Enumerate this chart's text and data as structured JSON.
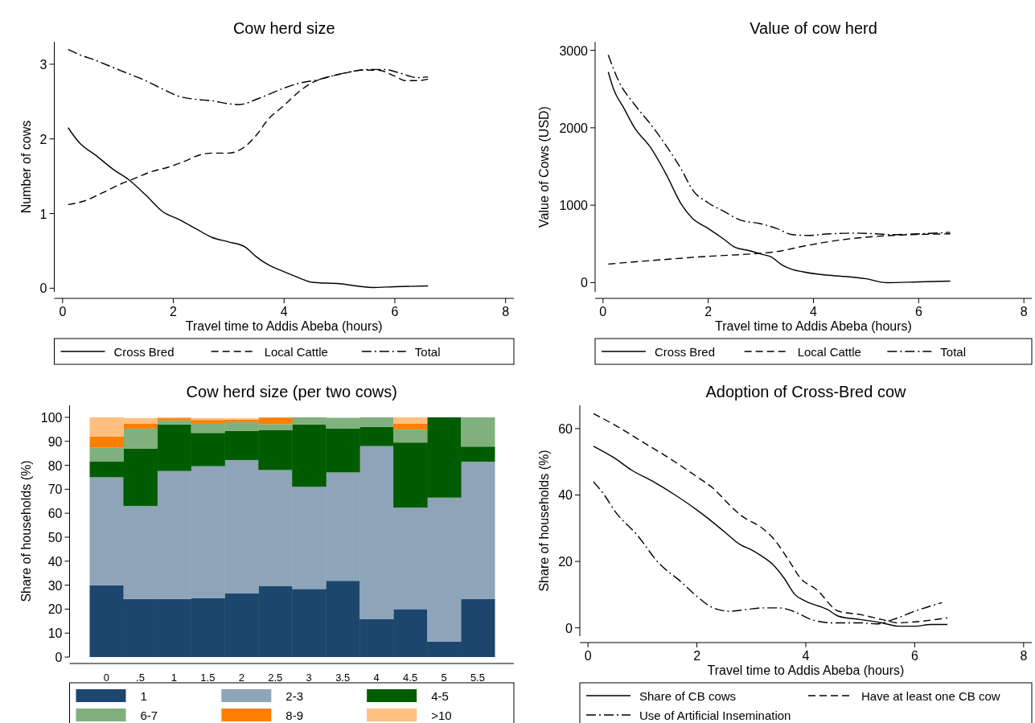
{
  "chart_data": [
    {
      "type": "line",
      "title": "Cow herd size",
      "xlabel": "Travel time to Addis Abeba (hours)",
      "ylabel": "Number of cows",
      "xlim": [
        -0.15,
        8.15
      ],
      "xticks": [
        0,
        2,
        4,
        6,
        8
      ],
      "ylim": [
        -0.05,
        3.3
      ],
      "yticks": [
        0,
        1,
        2,
        3
      ],
      "legend": "bottom",
      "grid": false,
      "series": [
        {
          "name": "Cross Bred",
          "color": "#000000",
          "line_style": "solid",
          "x": [
            0.1,
            0.3,
            0.6,
            0.9,
            1.2,
            1.5,
            1.8,
            2.1,
            2.4,
            2.7,
            3.0,
            3.3,
            3.5,
            3.7,
            4.0,
            4.3,
            4.5,
            5.0,
            5.6,
            6.0,
            6.6
          ],
          "values": [
            2.15,
            1.95,
            1.78,
            1.6,
            1.45,
            1.25,
            1.03,
            0.92,
            0.8,
            0.68,
            0.62,
            0.55,
            0.42,
            0.32,
            0.22,
            0.13,
            0.08,
            0.06,
            0.01,
            0.02,
            0.03
          ]
        },
        {
          "name": "Local Cattle",
          "color": "#000000",
          "line_style": "dashed",
          "x": [
            0.1,
            0.4,
            0.7,
            1.0,
            1.3,
            1.6,
            1.9,
            2.2,
            2.5,
            2.7,
            3.0,
            3.3,
            3.5,
            3.7,
            4.0,
            4.3,
            4.5,
            4.8,
            5.1,
            5.4,
            5.7,
            6.0,
            6.2,
            6.4,
            6.6
          ],
          "values": [
            1.12,
            1.17,
            1.27,
            1.38,
            1.47,
            1.56,
            1.62,
            1.7,
            1.79,
            1.81,
            1.81,
            1.9,
            2.05,
            2.25,
            2.45,
            2.65,
            2.75,
            2.83,
            2.88,
            2.92,
            2.92,
            2.84,
            2.78,
            2.78,
            2.8
          ]
        },
        {
          "name": "Total",
          "color": "#000000",
          "line_style": "dashdot",
          "x": [
            0.1,
            0.3,
            0.6,
            0.9,
            1.2,
            1.5,
            1.8,
            2.1,
            2.4,
            2.7,
            3.0,
            3.2,
            3.5,
            3.8,
            4.0,
            4.3,
            4.6,
            4.9,
            5.2,
            5.5,
            5.8,
            6.1,
            6.4,
            6.6
          ],
          "values": [
            3.2,
            3.13,
            3.05,
            2.96,
            2.87,
            2.78,
            2.67,
            2.57,
            2.53,
            2.51,
            2.47,
            2.46,
            2.53,
            2.62,
            2.68,
            2.75,
            2.79,
            2.85,
            2.9,
            2.93,
            2.93,
            2.88,
            2.82,
            2.83
          ]
        }
      ]
    },
    {
      "type": "line",
      "title": "Value of cow herd",
      "xlabel": "Travel time to Addis Abeba (hours)",
      "ylabel": "Value of Cows (USD)",
      "xlim": [
        -0.15,
        8.15
      ],
      "xticks": [
        0,
        2,
        4,
        6,
        8
      ],
      "ylim": [
        -120,
        3110
      ],
      "yticks": [
        0,
        1000,
        2000,
        3000
      ],
      "legend": "bottom",
      "grid": false,
      "series": [
        {
          "name": "Cross Bred",
          "color": "#000000",
          "line_style": "solid",
          "x": [
            0.1,
            0.2,
            0.4,
            0.6,
            0.9,
            1.2,
            1.5,
            1.7,
            2.0,
            2.3,
            2.5,
            2.8,
            3.0,
            3.2,
            3.4,
            3.6,
            3.8,
            4.2,
            4.6,
            5.0,
            5.4,
            6.0,
            6.6
          ],
          "values": [
            2720,
            2500,
            2250,
            2000,
            1750,
            1400,
            1000,
            830,
            700,
            560,
            460,
            410,
            370,
            330,
            230,
            170,
            140,
            100,
            80,
            50,
            0,
            10,
            20
          ]
        },
        {
          "name": "Local Cattle",
          "color": "#000000",
          "line_style": "dashed",
          "x": [
            0.1,
            1.0,
            2.0,
            3.0,
            3.3,
            3.8,
            4.5,
            5.5,
            6.6
          ],
          "values": [
            240,
            290,
            340,
            380,
            400,
            470,
            550,
            610,
            630
          ]
        },
        {
          "name": "Total",
          "color": "#000000",
          "line_style": "dashdot",
          "x": [
            0.1,
            0.3,
            0.6,
            0.9,
            1.2,
            1.5,
            1.7,
            2.0,
            2.3,
            2.6,
            3.0,
            3.3,
            3.6,
            3.9,
            4.3,
            4.8,
            5.2,
            5.5,
            6.0,
            6.6
          ],
          "values": [
            2940,
            2600,
            2300,
            2050,
            1770,
            1450,
            1200,
            1030,
            920,
            810,
            760,
            700,
            620,
            610,
            630,
            640,
            630,
            620,
            630,
            650
          ]
        }
      ]
    },
    {
      "type": "bar",
      "stacked": true,
      "title": "Cow herd size (per two cows)",
      "ylabel": "Share of households (%)",
      "categories": [
        "0",
        ".5",
        "1",
        "1.5",
        "2",
        "2.5",
        "3",
        "3.5",
        "4",
        "4.5",
        "5",
        "5.5"
      ],
      "ylim": [
        0,
        105
      ],
      "yticks": [
        0,
        10,
        20,
        30,
        40,
        50,
        60,
        70,
        80,
        90,
        100
      ],
      "legend": "bottom",
      "grid": false,
      "series": [
        {
          "name": "1",
          "color": "#1c466e",
          "values": [
            30,
            24.2,
            24.2,
            24.5,
            26.5,
            29.7,
            28.4,
            31.8,
            15.8,
            20,
            6.4,
            24.3
          ]
        },
        {
          "name": "2-3",
          "color": "#8ea4b8",
          "values": [
            45,
            38.8,
            53.4,
            55.1,
            55.7,
            48.3,
            42.6,
            45.2,
            72.2,
            42.3,
            60.1,
            57.2
          ]
        },
        {
          "name": "4-5",
          "color": "#005c00",
          "values": [
            6.5,
            24,
            19.4,
            13.9,
            12.1,
            16.6,
            26,
            18.3,
            8,
            27.2,
            33.5,
            6.3
          ]
        },
        {
          "name": "6-7",
          "color": "#80b07d",
          "values": [
            6,
            8.3,
            1.7,
            3.8,
            3.7,
            2.6,
            3,
            4.5,
            4,
            5.5,
            0,
            12.2
          ]
        },
        {
          "name": "8-9",
          "color": "#ff7f00",
          "values": [
            4.5,
            2,
            0.9,
            1.6,
            1,
            2.7,
            0,
            0,
            0,
            2.3,
            0,
            0
          ]
        },
        {
          "name": ">10",
          "color": "#ffbf80",
          "values": [
            8,
            2.4,
            0.4,
            0.8,
            0.6,
            0,
            0,
            0,
            0,
            2.7,
            0,
            0
          ]
        }
      ]
    },
    {
      "type": "line",
      "title": "Adoption of Cross-Bred cow",
      "xlabel": "Travel time to Addis Abeba (hours)",
      "ylabel": "Share of households (%)",
      "xlim": [
        -0.15,
        8.15
      ],
      "xticks": [
        0,
        2,
        4,
        6,
        8
      ],
      "ylim": [
        -2.5,
        67
      ],
      "yticks": [
        0,
        20,
        40,
        60
      ],
      "legend": "bottom",
      "grid": false,
      "series": [
        {
          "name": "Share of CB cows",
          "color": "#000000",
          "line_style": "solid",
          "x": [
            0.1,
            0.5,
            0.8,
            1.2,
            1.6,
            2.0,
            2.2,
            2.5,
            2.8,
            3.0,
            3.2,
            3.4,
            3.6,
            3.8,
            4.0,
            4.4,
            4.6,
            5.0,
            5.4,
            5.7,
            6.0,
            6.3,
            6.6
          ],
          "values": [
            54.7,
            51,
            47.5,
            44,
            40,
            35.5,
            33,
            29,
            25,
            23.5,
            21.5,
            19,
            15,
            10,
            8,
            5.5,
            3.5,
            2.5,
            1.5,
            0.5,
            0.5,
            1,
            1
          ]
        },
        {
          "name": "Have at least one CB cow",
          "color": "#000000",
          "line_style": "dashed",
          "x": [
            0.1,
            0.5,
            1.0,
            1.5,
            2.0,
            2.3,
            2.6,
            2.8,
            3.2,
            3.4,
            3.7,
            3.9,
            4.2,
            4.6,
            5.0,
            5.4,
            5.7,
            6.0,
            6.6
          ],
          "values": [
            64.5,
            61,
            56,
            51,
            45.5,
            42,
            37,
            34,
            30,
            27,
            20,
            15,
            11.5,
            5,
            4,
            2.5,
            1.5,
            1.8,
            3
          ]
        },
        {
          "name": "Use of Artificial Insemination",
          "color": "#000000",
          "line_style": "dashdot",
          "x": [
            0.1,
            0.3,
            0.5,
            0.9,
            1.3,
            1.7,
            2.0,
            2.3,
            2.6,
            2.9,
            3.2,
            3.5,
            3.8,
            4.1,
            4.5,
            5.0,
            5.3,
            5.6,
            6.0,
            6.5
          ],
          "values": [
            44,
            40,
            35,
            28,
            19.5,
            14,
            9.5,
            6,
            5,
            5.5,
            6,
            6,
            4.8,
            2.5,
            1.5,
            1.5,
            1.2,
            2.5,
            5,
            7.6
          ]
        }
      ]
    }
  ]
}
